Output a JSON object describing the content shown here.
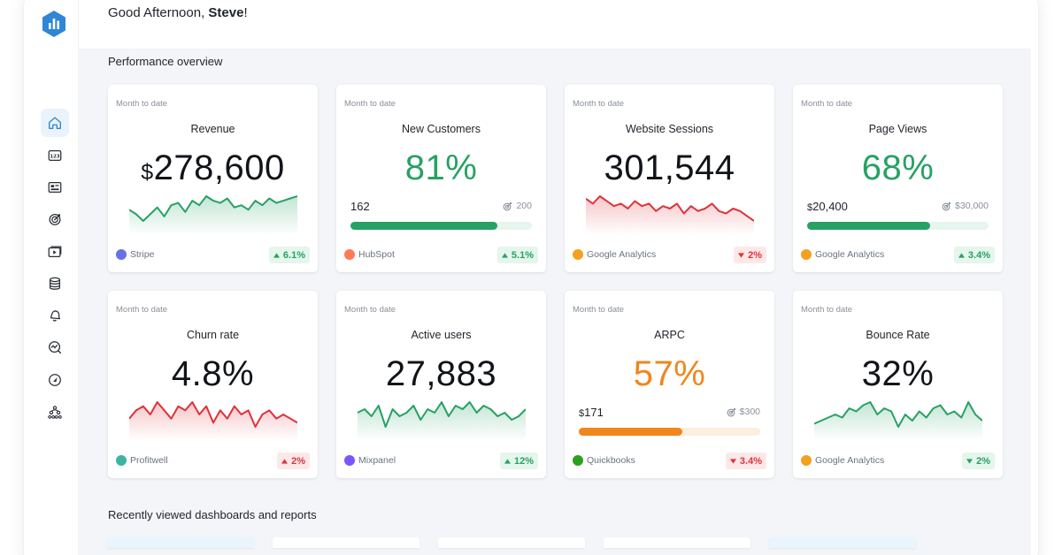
{
  "header": {
    "greeting_prefix": "Good Afternoon, ",
    "user_name": "Steve",
    "greeting_suffix": "!"
  },
  "sections": {
    "performance": "Performance overview",
    "recent": "Recently viewed dashboards and reports"
  },
  "sidebar": {
    "items": [
      {
        "name": "home",
        "icon": "home-icon",
        "active": true
      },
      {
        "name": "numbers",
        "icon": "numbers-icon",
        "active": false
      },
      {
        "name": "dashboards",
        "icon": "dashboard-icon",
        "active": false
      },
      {
        "name": "goals",
        "icon": "target-icon",
        "active": false
      },
      {
        "name": "tv",
        "icon": "play-screen-icon",
        "active": false
      },
      {
        "name": "data",
        "icon": "database-icon",
        "active": false
      },
      {
        "name": "alerts",
        "icon": "bell-icon",
        "active": false
      },
      {
        "name": "metrics",
        "icon": "chart-search-icon",
        "active": false
      },
      {
        "name": "benchmarks",
        "icon": "gauge-icon",
        "active": false
      },
      {
        "name": "team",
        "icon": "org-chart-icon",
        "active": false
      }
    ]
  },
  "colors": {
    "accent": "#2f86d6",
    "green": "#27a164",
    "red": "#e0323a",
    "orange": "#f0861c"
  },
  "cards": [
    {
      "caption": "Month to date",
      "title": "Revenue",
      "currency": "$",
      "value": "278,600",
      "value_color": "default",
      "chart": "green",
      "series": [
        8,
        6,
        3,
        6,
        9,
        5,
        10,
        11,
        7,
        12,
        10,
        14,
        12,
        11,
        13,
        9,
        10,
        8,
        12,
        10,
        13,
        11,
        12,
        13,
        14
      ],
      "source": "Stripe",
      "source_icon": "stripe-icon",
      "source_color": "#6772e5",
      "badge_dir": "up",
      "badge": "6.1%"
    },
    {
      "caption": "Month to date",
      "title": "New Customers",
      "value": "81%",
      "value_color": "green",
      "progress": {
        "current": "162",
        "goal": "200",
        "fraction": 0.81,
        "color": "#27a164",
        "track": "#e6f5ed"
      },
      "source": "HubSpot",
      "source_icon": "hubspot-icon",
      "source_color": "#ff7a59",
      "badge_dir": "up",
      "badge": "5.1%"
    },
    {
      "caption": "Month to date",
      "title": "Website Sessions",
      "value": "301,544",
      "value_color": "default",
      "chart": "red",
      "series": [
        14,
        12,
        15,
        13,
        11,
        12,
        10,
        13,
        11,
        12,
        9,
        11,
        10,
        12,
        8,
        11,
        9,
        10,
        12,
        9,
        8,
        10,
        9,
        7,
        5
      ],
      "source": "Google Analytics",
      "source_icon": "google-analytics-icon",
      "source_color": "#f4a020",
      "badge_dir": "down",
      "badge": "2%"
    },
    {
      "caption": "Month to date",
      "title": "Page Views",
      "value": "68%",
      "value_color": "green",
      "progress": {
        "current": "20,400",
        "currency": "$",
        "goal": "$30,000",
        "fraction": 0.68,
        "color": "#27a164",
        "track": "#e6f5ed"
      },
      "source": "Google Analytics",
      "source_icon": "google-analytics-icon",
      "source_color": "#f4a020",
      "badge_dir": "up",
      "badge": "3.4%"
    },
    {
      "caption": "Month to date",
      "title": "Churn rate",
      "value": "4.8%",
      "value_color": "default",
      "chart": "red",
      "series": [
        10,
        12,
        13,
        11,
        14,
        12,
        10,
        13,
        12,
        14,
        11,
        13,
        9,
        12,
        10,
        13,
        11,
        12,
        8,
        11,
        12,
        10,
        11,
        10,
        9
      ],
      "source": "Profitwell",
      "source_icon": "profitwell-icon",
      "source_color": "#3bb5a0",
      "badge_dir": "up_red",
      "badge": "2%"
    },
    {
      "caption": "Month to date",
      "title": "Active users",
      "value": "27,883",
      "value_color": "default",
      "chart": "green",
      "series": [
        9,
        10,
        8,
        11,
        5,
        10,
        8,
        9,
        11,
        7,
        10,
        9,
        12,
        8,
        11,
        10,
        12,
        9,
        11,
        10,
        8,
        9,
        7,
        8,
        10
      ],
      "source": "Mixpanel",
      "source_icon": "mixpanel-icon",
      "source_color": "#7856ff",
      "badge_dir": "up",
      "badge": "12%"
    },
    {
      "caption": "Month to date",
      "title": "ARPC",
      "value": "57%",
      "value_color": "orange",
      "progress": {
        "current": "171",
        "currency": "$",
        "goal": "$300",
        "fraction": 0.57,
        "color": "#f0861c",
        "track": "#fdeede"
      },
      "source": "Quickbooks",
      "source_icon": "quickbooks-icon",
      "source_color": "#2ca01c",
      "badge_dir": "down",
      "badge": "3.4%"
    },
    {
      "caption": "Month to date",
      "title": "Bounce Rate",
      "value": "32%",
      "value_color": "default",
      "chart": "green",
      "series": [
        7,
        8,
        9,
        10,
        9,
        12,
        11,
        13,
        14,
        10,
        12,
        11,
        6,
        10,
        8,
        11,
        9,
        12,
        13,
        10,
        11,
        9,
        14,
        10,
        8
      ],
      "source": "Google Analytics",
      "source_icon": "google-analytics-icon",
      "source_color": "#f4a020",
      "badge_dir": "down_green",
      "badge": "2%"
    }
  ]
}
